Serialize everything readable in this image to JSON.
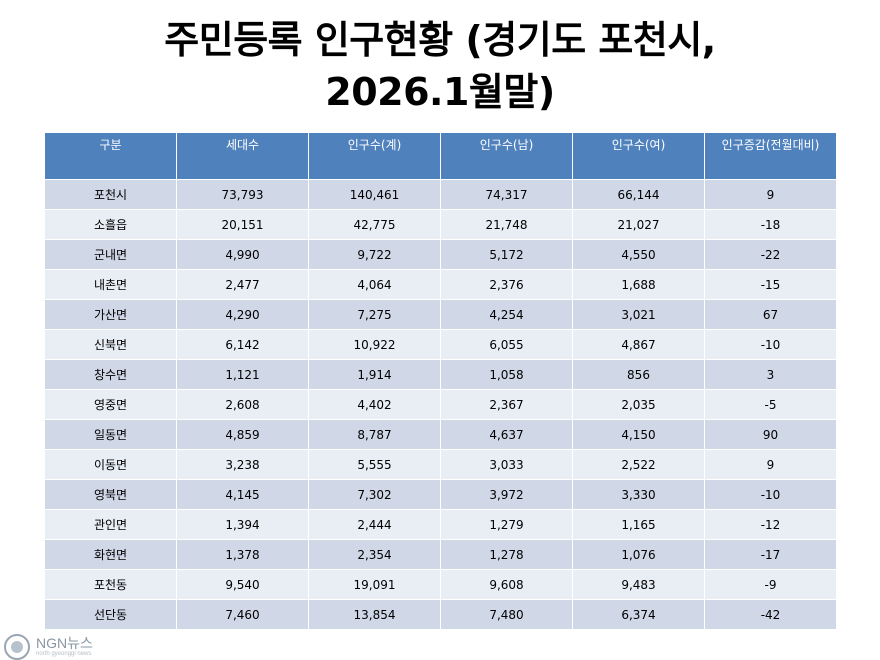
{
  "title": {
    "line1": "주민등록 인구현황 (경기도 포천시,",
    "line2": "2026.1월말)"
  },
  "table": {
    "headers": [
      "구분",
      "세대수",
      "인구수(계)",
      "인구수(남)",
      "인구수(여)",
      "인구증감(전월대비)"
    ],
    "rows": [
      [
        "포천시",
        "73,793",
        "140,461",
        "74,317",
        "66,144",
        "9"
      ],
      [
        "소흘읍",
        "20,151",
        "42,775",
        "21,748",
        "21,027",
        "-18"
      ],
      [
        "군내면",
        "4,990",
        "9,722",
        "5,172",
        "4,550",
        "-22"
      ],
      [
        "내촌면",
        "2,477",
        "4,064",
        "2,376",
        "1,688",
        "-15"
      ],
      [
        "가산면",
        "4,290",
        "7,275",
        "4,254",
        "3,021",
        "67"
      ],
      [
        "신북면",
        "6,142",
        "10,922",
        "6,055",
        "4,867",
        "-10"
      ],
      [
        "창수면",
        "1,121",
        "1,914",
        "1,058",
        "856",
        "3"
      ],
      [
        "영중면",
        "2,608",
        "4,402",
        "2,367",
        "2,035",
        "-5"
      ],
      [
        "일동면",
        "4,859",
        "8,787",
        "4,637",
        "4,150",
        "90"
      ],
      [
        "이동면",
        "3,238",
        "5,555",
        "3,033",
        "2,522",
        "9"
      ],
      [
        "영북면",
        "4,145",
        "7,302",
        "3,972",
        "3,330",
        "-10"
      ],
      [
        "관인면",
        "1,394",
        "2,444",
        "1,279",
        "1,165",
        "-12"
      ],
      [
        "화현면",
        "1,378",
        "2,354",
        "1,278",
        "1,076",
        "-17"
      ],
      [
        "포천동",
        "9,540",
        "19,091",
        "9,608",
        "9,483",
        "-9"
      ],
      [
        "선단동",
        "7,460",
        "13,854",
        "7,480",
        "6,374",
        "-42"
      ]
    ]
  },
  "watermark": {
    "name": "NGN뉴스",
    "sub": "north gyeonggi news"
  },
  "colors": {
    "header_bg": "#4f81bd",
    "row_odd": "#d0d8e8",
    "row_even": "#e9edf4"
  }
}
